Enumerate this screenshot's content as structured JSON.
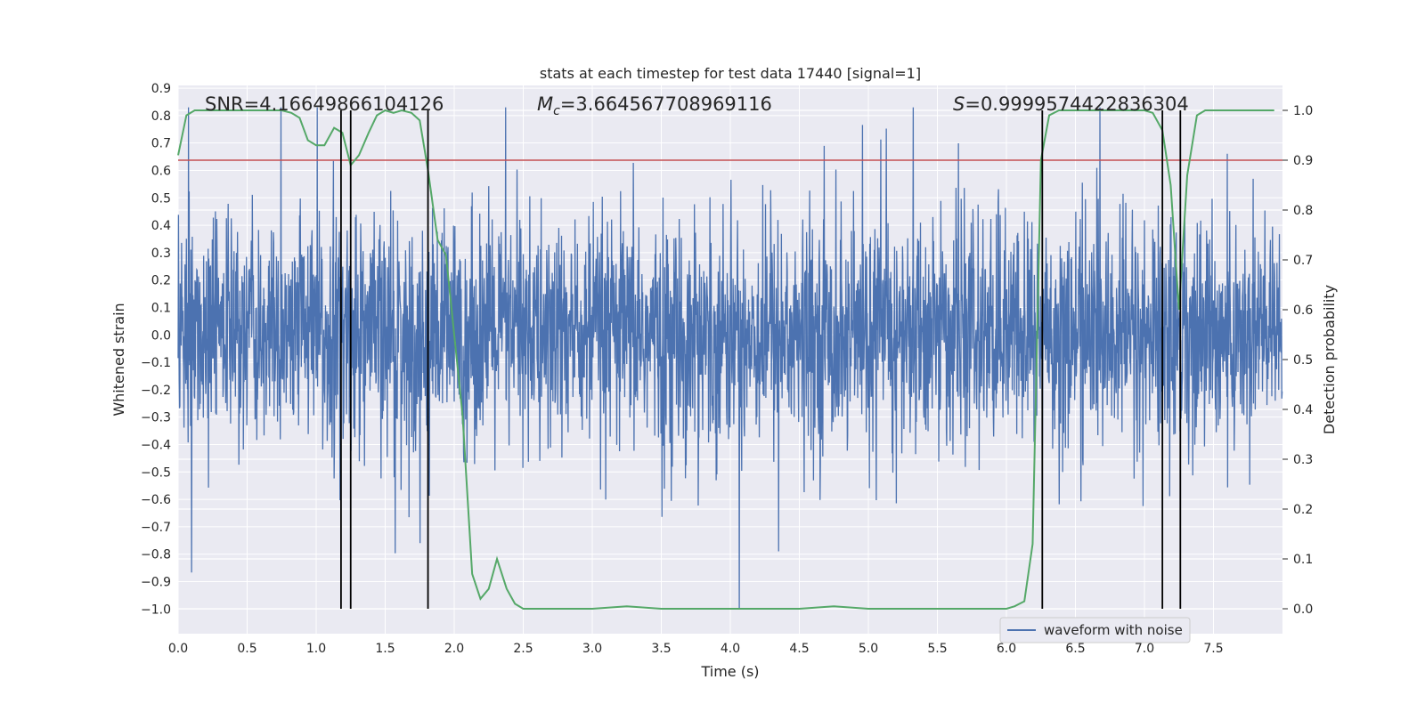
{
  "chart_data": {
    "type": "line",
    "title": "stats at each timestep for test data 17440 [signal=1]",
    "xlabel": "Time (s)",
    "ylabel": "Whitened strain",
    "y2label": "Detection probability",
    "xlim": [
      0.0,
      8.0
    ],
    "ylim": [
      -1.09,
      0.91
    ],
    "y2lim": [
      -0.05,
      1.05
    ],
    "xticks": [
      "0.0",
      "0.5",
      "1.0",
      "1.5",
      "2.0",
      "2.5",
      "3.0",
      "3.5",
      "4.0",
      "4.5",
      "5.0",
      "5.5",
      "6.0",
      "6.5",
      "7.0",
      "7.5"
    ],
    "yticks": [
      "0.9",
      "0.8",
      "0.7",
      "0.6",
      "0.5",
      "0.4",
      "0.3",
      "0.2",
      "0.1",
      "0.0",
      "−0.1",
      "−0.2",
      "−0.3",
      "−0.4",
      "−0.5",
      "−0.6",
      "−0.7",
      "−0.8",
      "−0.9",
      "−1.0"
    ],
    "y2ticks": [
      "1.0",
      "0.9",
      "0.8",
      "0.7",
      "0.6",
      "0.5",
      "0.4",
      "0.3",
      "0.2",
      "0.1",
      "0.0"
    ],
    "annotations": {
      "snr": "SNR=4.16649866104126",
      "mc_symbol": "M",
      "mc_sub": "c",
      "mc_value": "=3.664567708969116",
      "s_symbol": "S",
      "s_value": "=0.9999574422836304"
    },
    "legend": {
      "entry": "waveform with noise",
      "placement": "lower-right"
    },
    "threshold": 0.9,
    "vertical_lines": [
      1.18,
      1.25,
      1.81,
      6.26,
      7.13,
      7.26
    ],
    "waveform": {
      "name": "waveform with noise",
      "duration": 8.0,
      "samples": 3200,
      "typical_amplitude": 0.45,
      "max_peak": 0.83,
      "min_peak": -1.0
    },
    "detection_probability": {
      "name": "Detection probability",
      "x": [
        0.0,
        0.06,
        0.12,
        0.25,
        0.5,
        0.75,
        0.82,
        0.88,
        0.94,
        1.0,
        1.06,
        1.13,
        1.19,
        1.25,
        1.31,
        1.38,
        1.44,
        1.5,
        1.56,
        1.62,
        1.69,
        1.75,
        1.81,
        1.88,
        1.94,
        2.0,
        2.06,
        2.13,
        2.19,
        2.25,
        2.31,
        2.38,
        2.44,
        2.5,
        2.75,
        3.0,
        3.25,
        3.5,
        3.75,
        4.0,
        4.25,
        4.5,
        4.75,
        5.0,
        5.25,
        5.5,
        5.75,
        6.0,
        6.06,
        6.13,
        6.19,
        6.25,
        6.31,
        6.38,
        6.44,
        6.5,
        6.75,
        7.0,
        7.06,
        7.13,
        7.19,
        7.25,
        7.31,
        7.38,
        7.44,
        7.5,
        7.75,
        7.94
      ],
      "y": [
        0.91,
        0.99,
        1.0,
        1.0,
        1.0,
        1.0,
        0.995,
        0.985,
        0.94,
        0.93,
        0.93,
        0.965,
        0.955,
        0.89,
        0.91,
        0.955,
        0.99,
        1.0,
        0.995,
        1.0,
        0.995,
        0.98,
        0.88,
        0.74,
        0.71,
        0.55,
        0.39,
        0.07,
        0.02,
        0.04,
        0.1,
        0.04,
        0.01,
        0.0,
        0.0,
        0.0,
        0.005,
        0.0,
        0.0,
        0.0,
        0.0,
        0.0,
        0.005,
        0.0,
        0.0,
        0.0,
        0.0,
        0.0,
        0.005,
        0.015,
        0.13,
        0.9,
        0.99,
        1.0,
        1.0,
        1.0,
        1.0,
        1.0,
        0.995,
        0.96,
        0.85,
        0.6,
        0.87,
        0.99,
        1.0,
        1.0,
        1.0,
        1.0
      ]
    },
    "colors": {
      "background": "#eaeaf2",
      "grid": "#ffffff",
      "waveform": "#4c72b0",
      "probability": "#55a868",
      "threshold": "#c44e52",
      "vlines": "#000000"
    }
  }
}
